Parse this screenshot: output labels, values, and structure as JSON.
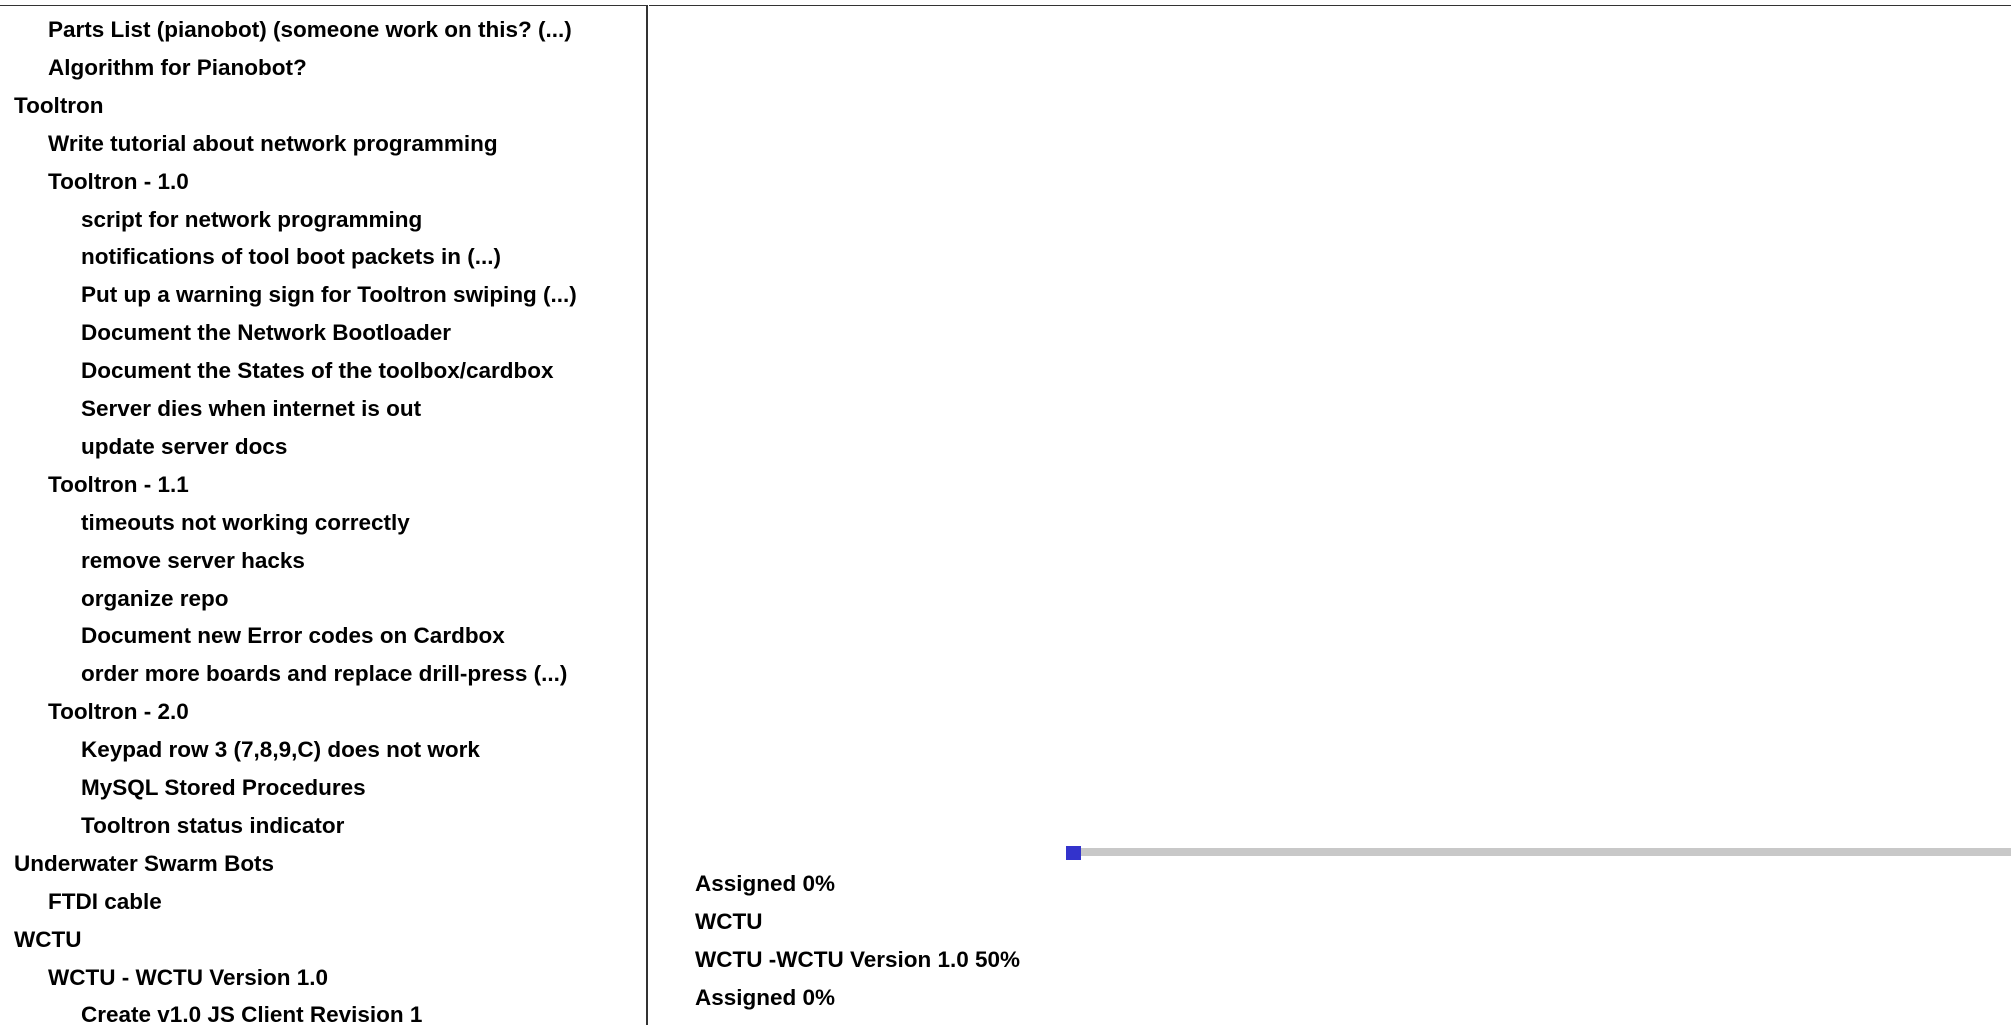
{
  "tree": {
    "items": [
      {
        "label": "Parts List (pianobot) (someone work on this?  (...)",
        "level": 1
      },
      {
        "label": "Algorithm for Pianobot?",
        "level": 1
      },
      {
        "label": "Tooltron",
        "level": 0
      },
      {
        "label": "Write tutorial about network programming",
        "level": 1
      },
      {
        "label": "Tooltron - 1.0",
        "level": 1
      },
      {
        "label": "script for network programming",
        "level": 2
      },
      {
        "label": "notifications of tool boot packets in  (...)",
        "level": 2
      },
      {
        "label": "Put up a warning sign for Tooltron swiping  (...)",
        "level": 2
      },
      {
        "label": "Document the Network Bootloader",
        "level": 2
      },
      {
        "label": "Document the States of the toolbox/cardbox",
        "level": 2
      },
      {
        "label": "Server dies when internet is out",
        "level": 2
      },
      {
        "label": "update server docs",
        "level": 2
      },
      {
        "label": "Tooltron - 1.1",
        "level": 1
      },
      {
        "label": "timeouts not working correctly",
        "level": 2
      },
      {
        "label": "remove server hacks",
        "level": 2
      },
      {
        "label": "organize repo",
        "level": 2
      },
      {
        "label": "Document new Error codes on Cardbox",
        "level": 2
      },
      {
        "label": "order more boards and replace drill-press  (...)",
        "level": 2
      },
      {
        "label": "Tooltron - 2.0",
        "level": 1
      },
      {
        "label": "Keypad row 3 (7,8,9,C) does not work",
        "level": 2
      },
      {
        "label": "MySQL Stored Procedures",
        "level": 2
      },
      {
        "label": "Tooltron status indicator",
        "level": 2
      },
      {
        "label": "Underwater Swarm Bots",
        "level": 0
      },
      {
        "label": "FTDI cable",
        "level": 1
      },
      {
        "label": "WCTU",
        "level": 0
      },
      {
        "label": "WCTU - WCTU Version 1.0",
        "level": 1
      },
      {
        "label": "Create v1.0 JS Client Revision 1",
        "level": 2
      }
    ]
  },
  "detail": {
    "progress_value": 0,
    "progress_color": "#3333cc",
    "track_color": "#c8c8c8",
    "lines": [
      "Assigned 0%",
      "WCTU",
      "WCTU -WCTU Version 1.0 50%",
      "Assigned 0%"
    ]
  }
}
